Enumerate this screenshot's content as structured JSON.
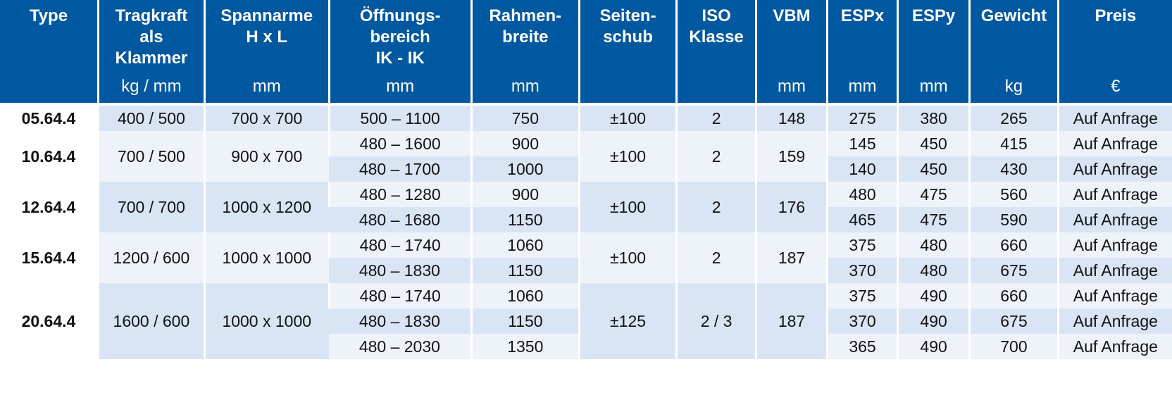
{
  "headers": [
    {
      "title": [
        "Type"
      ],
      "unit": ""
    },
    {
      "title": [
        "Tragkraft",
        "als",
        "Klammer"
      ],
      "unit": "kg / mm"
    },
    {
      "title": [
        "Spannarme",
        "H x L"
      ],
      "unit": "mm"
    },
    {
      "title": [
        "Öffnungs-",
        "bereich",
        "IK - IK"
      ],
      "unit": "mm"
    },
    {
      "title": [
        "Rahmen-",
        "breite"
      ],
      "unit": "mm"
    },
    {
      "title": [
        "Seiten-",
        "schub"
      ],
      "unit": ""
    },
    {
      "title": [
        "ISO",
        "Klasse"
      ],
      "unit": ""
    },
    {
      "title": [
        "VBM"
      ],
      "unit": "mm"
    },
    {
      "title": [
        "ESPx"
      ],
      "unit": "mm"
    },
    {
      "title": [
        "ESPy"
      ],
      "unit": "mm"
    },
    {
      "title": [
        "Gewicht"
      ],
      "unit": "kg"
    },
    {
      "title": [
        "Preis"
      ],
      "unit": "€"
    }
  ],
  "groups": [
    {
      "type": "05.64.4",
      "tragkraft": "400 / 500",
      "spannarme": "700 x 700",
      "seitenschub": "±100",
      "iso": "2",
      "vbm": "148",
      "rows": [
        {
          "oeffnung": "500  –  1100",
          "rahmen": "750",
          "espx": "275",
          "espy": "380",
          "gewicht": "265",
          "preis": "Auf Anfrage"
        }
      ]
    },
    {
      "type": "10.64.4",
      "tragkraft": "700 / 500",
      "spannarme": "900 x 700",
      "seitenschub": "±100",
      "iso": "2",
      "vbm": "159",
      "rows": [
        {
          "oeffnung": "480  –  1600",
          "rahmen": "900",
          "espx": "145",
          "espy": "450",
          "gewicht": "415",
          "preis": "Auf Anfrage"
        },
        {
          "oeffnung": "480  –  1700",
          "rahmen": "1000",
          "espx": "140",
          "espy": "450",
          "gewicht": "430",
          "preis": "Auf Anfrage"
        }
      ]
    },
    {
      "type": "12.64.4",
      "tragkraft": "700 / 700",
      "spannarme": "1000 x 1200",
      "seitenschub": "±100",
      "iso": "2",
      "vbm": "176",
      "rows": [
        {
          "oeffnung": "480  –  1280",
          "rahmen": "900",
          "espx": "480",
          "espy": "475",
          "gewicht": "560",
          "preis": "Auf Anfrage"
        },
        {
          "oeffnung": "480  –  1680",
          "rahmen": "1150",
          "espx": "465",
          "espy": "475",
          "gewicht": "590",
          "preis": "Auf Anfrage"
        }
      ]
    },
    {
      "type": "15.64.4",
      "tragkraft": "1200 / 600",
      "spannarme": "1000 x 1000",
      "seitenschub": "±100",
      "iso": "2",
      "vbm": "187",
      "rows": [
        {
          "oeffnung": "480  –  1740",
          "rahmen": "1060",
          "espx": "375",
          "espy": "480",
          "gewicht": "660",
          "preis": "Auf Anfrage"
        },
        {
          "oeffnung": "480  –  1830",
          "rahmen": "1150",
          "espx": "370",
          "espy": "480",
          "gewicht": "675",
          "preis": "Auf Anfrage"
        }
      ]
    },
    {
      "type": "20.64.4",
      "tragkraft": "1600 / 600",
      "spannarme": "1000 x 1000",
      "seitenschub": "±125",
      "iso": "2  /  3",
      "vbm": "187",
      "rows": [
        {
          "oeffnung": "480  –  1740",
          "rahmen": "1060",
          "espx": "375",
          "espy": "490",
          "gewicht": "660",
          "preis": "Auf Anfrage"
        },
        {
          "oeffnung": "480  –  1830",
          "rahmen": "1150",
          "espx": "370",
          "espy": "490",
          "gewicht": "675",
          "preis": "Auf Anfrage"
        },
        {
          "oeffnung": "480  –  2030",
          "rahmen": "1350",
          "espx": "365",
          "espy": "490",
          "gewicht": "700",
          "preis": "Auf Anfrage"
        }
      ]
    }
  ],
  "colors": {
    "header_bg": "#0059a0",
    "row_dark": "#d9e5f4",
    "row_light": "#eef3fa"
  }
}
